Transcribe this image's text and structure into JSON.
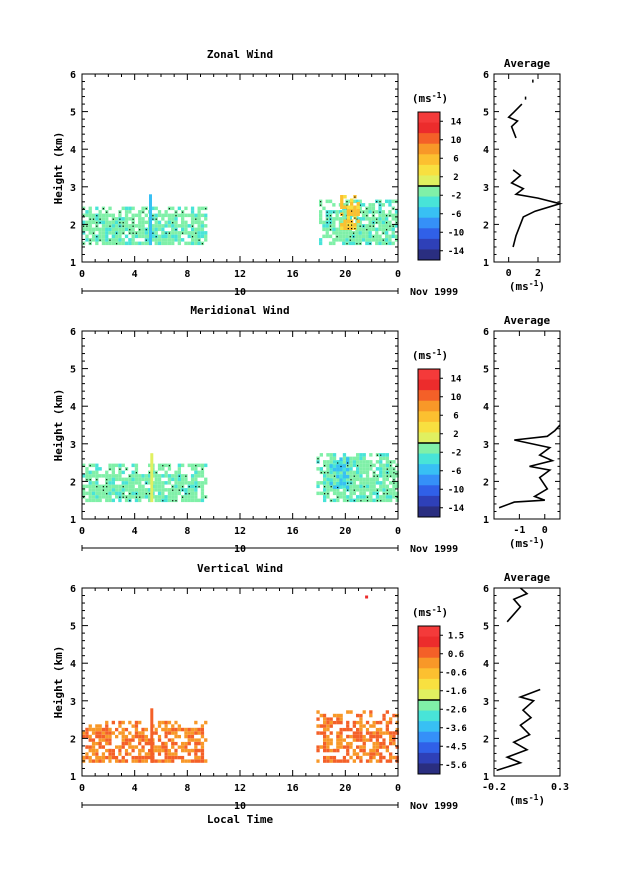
{
  "date_label": "Nov 1999",
  "day_label": "10",
  "x_axis_label": "Local Time",
  "average_title": "Average",
  "unit_label": "(ms",
  "unit_exp": "-1",
  "chart_data": [
    {
      "type": "heatmap",
      "title": "Zonal Wind",
      "ylabel": "Height (km)",
      "xlabel": "",
      "xlim": [
        0,
        24
      ],
      "ylim": [
        1,
        6
      ],
      "x_ticks": [
        "0",
        "4",
        "8",
        "12",
        "16",
        "20",
        "0"
      ],
      "y_ticks": [
        "1",
        "2",
        "3",
        "4",
        "5",
        "6"
      ],
      "colorbar": {
        "ticks": [
          "14",
          "10",
          "6",
          "2",
          "-2",
          "-6",
          "-10",
          "-14"
        ],
        "range": [
          -16,
          16
        ]
      },
      "data_regions": [
        {
          "x": [
            0,
            9.5
          ],
          "y": [
            1.45,
            2.45
          ],
          "value": -1.5
        },
        {
          "x": [
            18,
            24
          ],
          "y": [
            1.45,
            2.6
          ],
          "value": -1.5
        },
        {
          "x": [
            19.6,
            21
          ],
          "y": [
            1.85,
            2.7
          ],
          "value": 5
        }
      ],
      "spikes": [
        {
          "x": 5.2,
          "y": [
            1.45,
            2.8
          ],
          "value": -5
        }
      ],
      "average": {
        "xlim": [
          -1,
          3.5
        ],
        "x_ticks": [
          "0",
          "2"
        ],
        "ylim": [
          1,
          6
        ],
        "y_ticks": [
          "1",
          "2",
          "3",
          "4",
          "5",
          "6"
        ],
        "profile": [
          [
            0.3,
            1.4
          ],
          [
            0.5,
            1.7
          ],
          [
            0.8,
            2.0
          ],
          [
            1.0,
            2.2
          ],
          [
            1.8,
            2.35
          ],
          [
            3.5,
            2.55
          ],
          [
            2.0,
            2.7
          ],
          [
            0.5,
            2.8
          ],
          [
            1.0,
            2.95
          ],
          [
            0.2,
            3.1
          ],
          [
            0.8,
            3.3
          ],
          [
            0.3,
            3.45
          ]
        ],
        "profile_upper": [
          [
            0.5,
            4.3
          ],
          [
            0.2,
            4.6
          ],
          [
            0.6,
            4.75
          ],
          [
            0.0,
            4.85
          ],
          [
            0.4,
            5.0
          ],
          [
            0.9,
            5.2
          ]
        ],
        "dots": [
          [
            1.1,
            5.4
          ],
          [
            1.6,
            5.85
          ]
        ]
      }
    },
    {
      "type": "heatmap",
      "title": "Meridional Wind",
      "ylabel": "Height (km)",
      "xlabel": "",
      "xlim": [
        0,
        24
      ],
      "ylim": [
        1,
        6
      ],
      "x_ticks": [
        "0",
        "4",
        "8",
        "12",
        "16",
        "20",
        "0"
      ],
      "y_ticks": [
        "1",
        "2",
        "3",
        "4",
        "5",
        "6"
      ],
      "colorbar": {
        "ticks": [
          "14",
          "10",
          "6",
          "2",
          "-2",
          "-6",
          "-10",
          "-14"
        ],
        "range": [
          -16,
          16
        ]
      },
      "data_regions": [
        {
          "x": [
            0,
            9.5
          ],
          "y": [
            1.45,
            2.4
          ],
          "value": -1.5
        },
        {
          "x": [
            17.8,
            24
          ],
          "y": [
            1.45,
            2.75
          ],
          "value": -1.5
        },
        {
          "x": [
            18.8,
            20.2
          ],
          "y": [
            1.8,
            2.55
          ],
          "value": -5
        }
      ],
      "spikes": [
        {
          "x": 5.3,
          "y": [
            1.45,
            2.75
          ],
          "value": 0
        }
      ],
      "average": {
        "xlim": [
          -2,
          0.6
        ],
        "x_ticks": [
          "-1",
          "0"
        ],
        "ylim": [
          1,
          6
        ],
        "y_ticks": [
          "1",
          "2",
          "3",
          "4",
          "5",
          "6"
        ],
        "profile": [
          [
            -1.8,
            1.3
          ],
          [
            -1.2,
            1.45
          ],
          [
            0.0,
            1.5
          ],
          [
            -0.4,
            1.6
          ],
          [
            0.1,
            1.8
          ],
          [
            -0.2,
            2.1
          ],
          [
            0.2,
            2.3
          ],
          [
            -0.6,
            2.4
          ],
          [
            0.3,
            2.55
          ],
          [
            -0.2,
            2.7
          ],
          [
            0.2,
            2.9
          ],
          [
            -1.2,
            3.1
          ],
          [
            0.1,
            3.2
          ],
          [
            0.4,
            3.35
          ],
          [
            0.6,
            3.5
          ]
        ]
      }
    },
    {
      "type": "heatmap",
      "title": "Vertical Wind",
      "ylabel": "Height (km)",
      "xlabel": "Local Time",
      "xlim": [
        0,
        24
      ],
      "ylim": [
        1,
        6
      ],
      "x_ticks": [
        "0",
        "4",
        "8",
        "12",
        "16",
        "20",
        "0"
      ],
      "y_ticks": [
        "1",
        "2",
        "3",
        "4",
        "5",
        "6"
      ],
      "colorbar": {
        "ticks": [
          "1.5",
          "0.6",
          "-0.6",
          "-1.6",
          "-2.6",
          "-3.6",
          "-4.5",
          "-5.6"
        ],
        "range": [
          -6,
          2
        ]
      },
      "data_regions": [
        {
          "x": [
            0,
            9.5
          ],
          "y": [
            1.35,
            2.45
          ],
          "value": 0.3
        },
        {
          "x": [
            17.8,
            24
          ],
          "y": [
            1.35,
            2.7
          ],
          "value": 0.3
        }
      ],
      "spikes": [
        {
          "x": 5.3,
          "y": [
            1.35,
            2.8
          ],
          "value": 0.3
        }
      ],
      "stray_points": [
        {
          "x": 21.5,
          "y": 5.8,
          "value": 1.0
        }
      ],
      "average": {
        "xlim": [
          -0.2,
          0.3
        ],
        "x_ticks": [
          "-0.2",
          "0.3"
        ],
        "ylim": [
          1,
          6
        ],
        "y_ticks": [
          "1",
          "2",
          "3",
          "4",
          "5",
          "6"
        ],
        "profile": [
          [
            -0.18,
            1.15
          ],
          [
            0.0,
            1.35
          ],
          [
            -0.1,
            1.5
          ],
          [
            0.05,
            1.7
          ],
          [
            -0.05,
            1.9
          ],
          [
            0.07,
            2.1
          ],
          [
            0.0,
            2.35
          ],
          [
            0.08,
            2.55
          ],
          [
            0.02,
            2.75
          ],
          [
            0.1,
            3.0
          ],
          [
            0.0,
            3.1
          ],
          [
            0.15,
            3.3
          ]
        ],
        "profile_upper": [
          [
            -0.1,
            5.1
          ],
          [
            -0.05,
            5.3
          ],
          [
            0.0,
            5.5
          ],
          [
            -0.05,
            5.7
          ],
          [
            0.05,
            5.85
          ],
          [
            0.0,
            6.0
          ]
        ]
      }
    }
  ]
}
